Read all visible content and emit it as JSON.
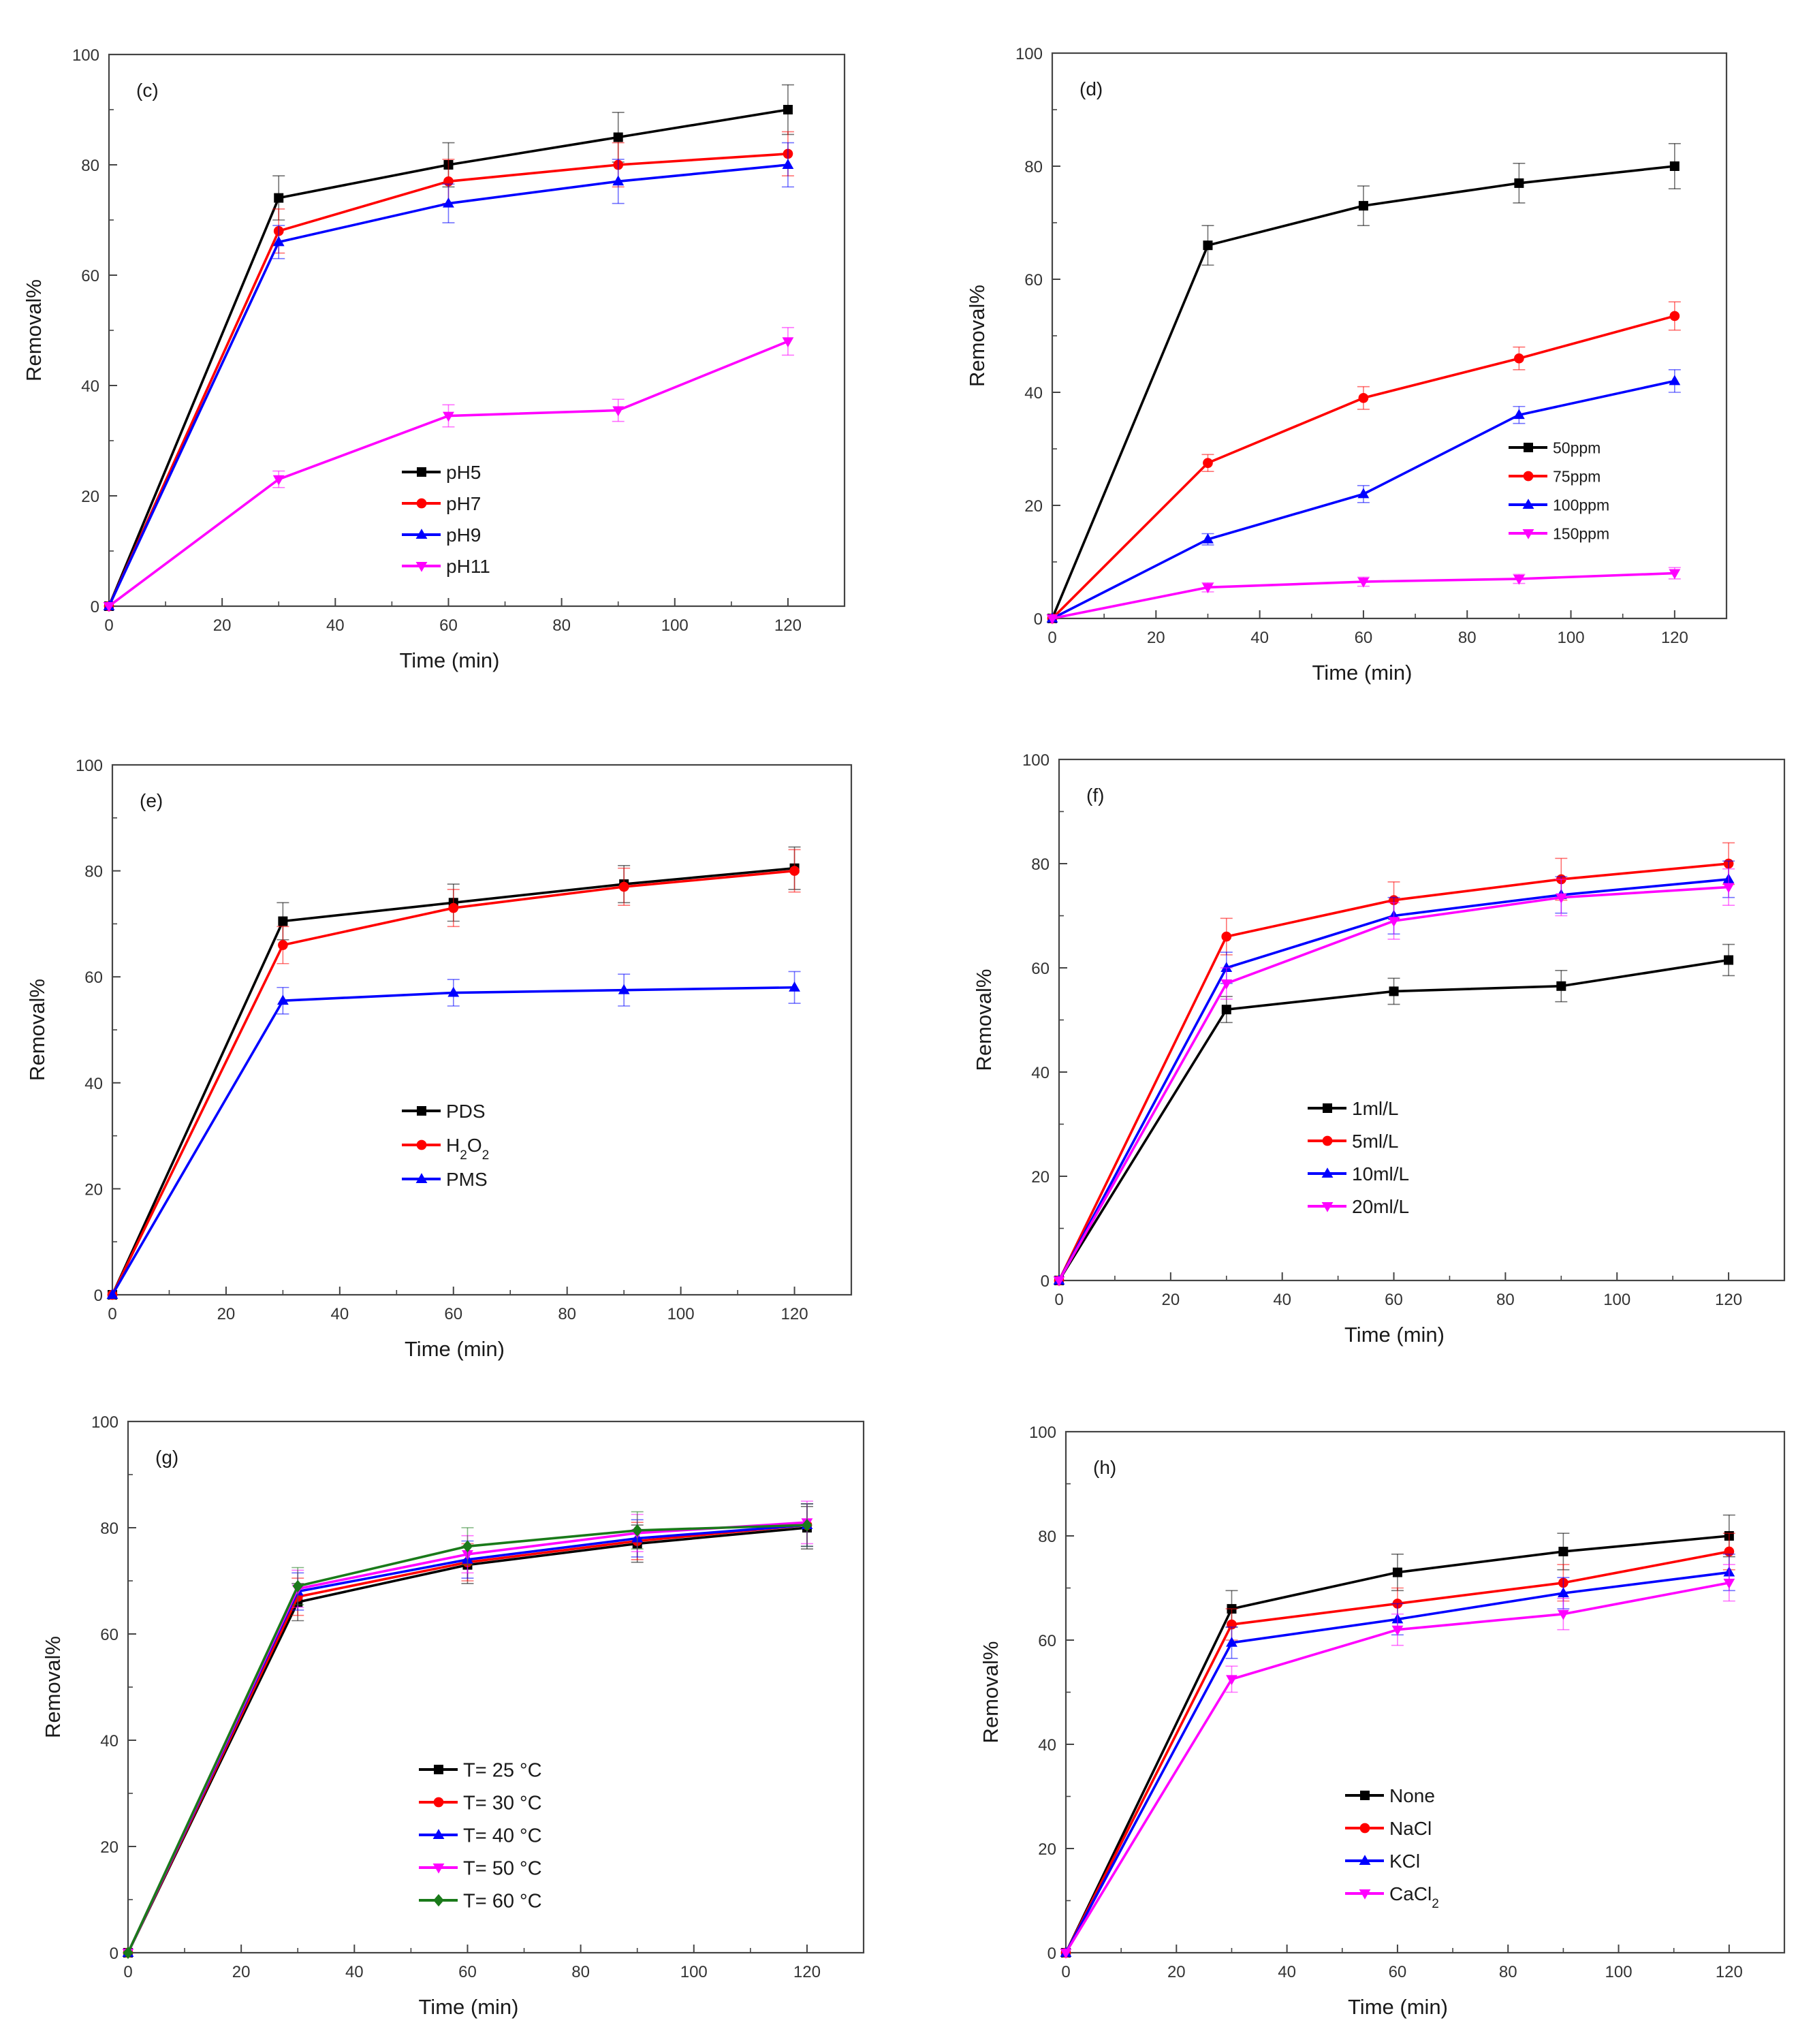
{
  "figure": {
    "columns": 2,
    "rows": 3
  },
  "chart_data": [
    {
      "panel": "(c)",
      "type": "line",
      "xlabel": "Time (min)",
      "ylabel": "Removal%",
      "xlim": [
        0,
        130
      ],
      "ylim": [
        0,
        100
      ],
      "xticks": [
        0,
        20,
        40,
        60,
        80,
        100,
        120
      ],
      "yticks": [
        0,
        20,
        40,
        60,
        80,
        100
      ],
      "x": [
        0,
        30,
        60,
        90,
        120
      ],
      "legend_position": "lower-center",
      "series": [
        {
          "name": "pH5",
          "color": "#000000",
          "marker": "square",
          "values": [
            0,
            74,
            80,
            85,
            90
          ],
          "errors": [
            0,
            4,
            4,
            4.5,
            4.5
          ]
        },
        {
          "name": "pH7",
          "color": "#ff0000",
          "marker": "circle",
          "values": [
            0,
            68,
            77,
            80,
            82
          ],
          "errors": [
            0,
            4,
            4,
            4,
            4
          ]
        },
        {
          "name": "pH9",
          "color": "#0000ff",
          "marker": "triangle-up",
          "values": [
            0,
            66,
            73,
            77,
            80
          ],
          "errors": [
            0,
            3,
            3.5,
            4,
            4
          ]
        },
        {
          "name": "pH11",
          "color": "#ff00ff",
          "marker": "triangle-down",
          "values": [
            0,
            23,
            34.5,
            35.5,
            48
          ],
          "errors": [
            0,
            1.5,
            2,
            2,
            2.5
          ]
        }
      ]
    },
    {
      "panel": "(d)",
      "type": "line",
      "xlabel": "Time (min)",
      "ylabel": "Removal%",
      "xlim": [
        0,
        130
      ],
      "ylim": [
        0,
        100
      ],
      "xticks": [
        0,
        20,
        40,
        60,
        80,
        100,
        120
      ],
      "yticks": [
        0,
        20,
        40,
        60,
        80,
        100
      ],
      "x": [
        0,
        30,
        60,
        90,
        120
      ],
      "legend_position": "center-right",
      "series": [
        {
          "name": "50ppm",
          "color": "#000000",
          "marker": "square",
          "values": [
            0,
            66,
            73,
            77,
            80
          ],
          "errors": [
            0,
            3.5,
            3.5,
            3.5,
            4
          ]
        },
        {
          "name": "75ppm",
          "color": "#ff0000",
          "marker": "circle",
          "values": [
            0,
            27.5,
            39,
            46,
            53.5
          ],
          "errors": [
            0,
            1.5,
            2,
            2,
            2.5
          ]
        },
        {
          "name": "100ppm",
          "color": "#0000ff",
          "marker": "triangle-up",
          "values": [
            0,
            14,
            22,
            36,
            42
          ],
          "errors": [
            0,
            1,
            1.5,
            1.5,
            2
          ]
        },
        {
          "name": "150ppm",
          "color": "#ff00ff",
          "marker": "triangle-down",
          "values": [
            0,
            5.5,
            6.5,
            7,
            8
          ],
          "errors": [
            0,
            0.8,
            0.8,
            0.8,
            1
          ]
        }
      ]
    },
    {
      "panel": "(e)",
      "type": "line",
      "xlabel": "Time (min)",
      "ylabel": "Removal%",
      "xlim": [
        0,
        130
      ],
      "ylim": [
        0,
        100
      ],
      "xticks": [
        0,
        20,
        40,
        60,
        80,
        100,
        120
      ],
      "yticks": [
        0,
        20,
        40,
        60,
        80,
        100
      ],
      "x": [
        0,
        30,
        60,
        90,
        120
      ],
      "legend_position": "lower-center",
      "series": [
        {
          "name": "PDS",
          "color": "#000000",
          "marker": "square",
          "values": [
            0,
            70.5,
            74,
            77.5,
            80.5
          ],
          "errors": [
            0,
            3.5,
            3.5,
            3.5,
            4
          ]
        },
        {
          "name": "H2O2",
          "label_base": "H",
          "label_sub1": "2",
          "label_mid": "O",
          "label_sub2": "2",
          "color": "#ff0000",
          "marker": "circle",
          "values": [
            0,
            66,
            73,
            77,
            80
          ],
          "errors": [
            0,
            3.5,
            3.5,
            3.5,
            4
          ]
        },
        {
          "name": "PMS",
          "color": "#0000ff",
          "marker": "triangle-up",
          "values": [
            0,
            55.5,
            57,
            57.5,
            58
          ],
          "errors": [
            0,
            2.5,
            2.5,
            3,
            3
          ]
        }
      ]
    },
    {
      "panel": "(f)",
      "type": "line",
      "xlabel": "Time (min)",
      "ylabel": "Removal%",
      "xlim": [
        0,
        130
      ],
      "ylim": [
        0,
        100
      ],
      "xticks": [
        0,
        20,
        40,
        60,
        80,
        100,
        120
      ],
      "yticks": [
        0,
        20,
        40,
        60,
        80,
        100
      ],
      "x": [
        0,
        30,
        60,
        90,
        120
      ],
      "legend_position": "lower-center",
      "series": [
        {
          "name": "1ml/L",
          "color": "#000000",
          "marker": "square",
          "values": [
            0,
            52,
            55.5,
            56.5,
            61.5
          ],
          "errors": [
            0,
            2.5,
            2.5,
            3,
            3
          ]
        },
        {
          "name": "5ml/L",
          "color": "#ff0000",
          "marker": "circle",
          "values": [
            0,
            66,
            73,
            77,
            80
          ],
          "errors": [
            0,
            3.5,
            3.5,
            4,
            4
          ]
        },
        {
          "name": "10ml/L",
          "color": "#0000ff",
          "marker": "triangle-up",
          "values": [
            0,
            60,
            70,
            74,
            77
          ],
          "errors": [
            0,
            3,
            3.5,
            3.5,
            3.5
          ]
        },
        {
          "name": "20ml/L",
          "color": "#ff00ff",
          "marker": "triangle-down",
          "values": [
            0,
            57,
            69,
            73.5,
            75.5
          ],
          "errors": [
            0,
            3,
            3.5,
            3.5,
            3.5
          ]
        }
      ]
    },
    {
      "panel": "(g)",
      "type": "line",
      "xlabel": "Time (min)",
      "ylabel": "Removal%",
      "xlim": [
        0,
        130
      ],
      "ylim": [
        0,
        100
      ],
      "xticks": [
        0,
        20,
        40,
        60,
        80,
        100,
        120
      ],
      "yticks": [
        0,
        20,
        40,
        60,
        80,
        100
      ],
      "x": [
        0,
        30,
        60,
        90,
        120
      ],
      "legend_position": "lower-center",
      "series": [
        {
          "name": "T= 25 °C",
          "color": "#000000",
          "marker": "square",
          "values": [
            0,
            66,
            73,
            77,
            80
          ],
          "errors": [
            0,
            3.5,
            3.5,
            3.5,
            4
          ]
        },
        {
          "name": "T= 30 °C",
          "color": "#ff0000",
          "marker": "circle",
          "values": [
            0,
            67,
            73.5,
            77.5,
            80.5
          ],
          "errors": [
            0,
            3.5,
            3.5,
            3.5,
            4
          ]
        },
        {
          "name": "T= 40 °C",
          "color": "#0000ff",
          "marker": "triangle-up",
          "values": [
            0,
            68,
            74,
            78,
            80.5
          ],
          "errors": [
            0,
            3.5,
            3.5,
            3.5,
            4
          ]
        },
        {
          "name": "T= 50 °C",
          "color": "#ff00ff",
          "marker": "triangle-down",
          "values": [
            0,
            68.5,
            75,
            79,
            81
          ],
          "errors": [
            0,
            3.5,
            3.5,
            3.5,
            4
          ]
        },
        {
          "name": "T= 60 °C",
          "color": "#1a7a1a",
          "marker": "diamond",
          "values": [
            0,
            69,
            76.5,
            79.5,
            80.5
          ],
          "errors": [
            0,
            3.5,
            3.5,
            3.5,
            4
          ]
        }
      ]
    },
    {
      "panel": "(h)",
      "type": "line",
      "xlabel": "Time (min)",
      "ylabel": "Removal%",
      "xlim": [
        0,
        130
      ],
      "ylim": [
        0,
        100
      ],
      "xticks": [
        0,
        20,
        40,
        60,
        80,
        100,
        120
      ],
      "yticks": [
        0,
        20,
        40,
        60,
        80,
        100
      ],
      "x": [
        0,
        30,
        60,
        90,
        120
      ],
      "legend_position": "lower-right",
      "series": [
        {
          "name": "None",
          "color": "#000000",
          "marker": "square",
          "values": [
            0,
            66,
            73,
            77,
            80
          ],
          "errors": [
            0,
            3.5,
            3.5,
            3.5,
            4
          ]
        },
        {
          "name": "NaCl",
          "color": "#ff0000",
          "marker": "circle",
          "values": [
            0,
            63,
            67,
            71,
            77
          ],
          "errors": [
            0,
            3,
            3,
            3.5,
            3.5
          ]
        },
        {
          "name": "KCl",
          "color": "#0000ff",
          "marker": "triangle-up",
          "values": [
            0,
            59.5,
            64,
            69,
            73
          ],
          "errors": [
            0,
            3,
            3,
            3,
            3.5
          ]
        },
        {
          "name": "CaCl2",
          "label_base": "CaCl",
          "label_sub1": "2",
          "color": "#ff00ff",
          "marker": "triangle-down",
          "values": [
            0,
            52.5,
            62,
            65,
            71
          ],
          "errors": [
            0,
            2.5,
            3,
            3,
            3.5
          ]
        }
      ]
    }
  ]
}
